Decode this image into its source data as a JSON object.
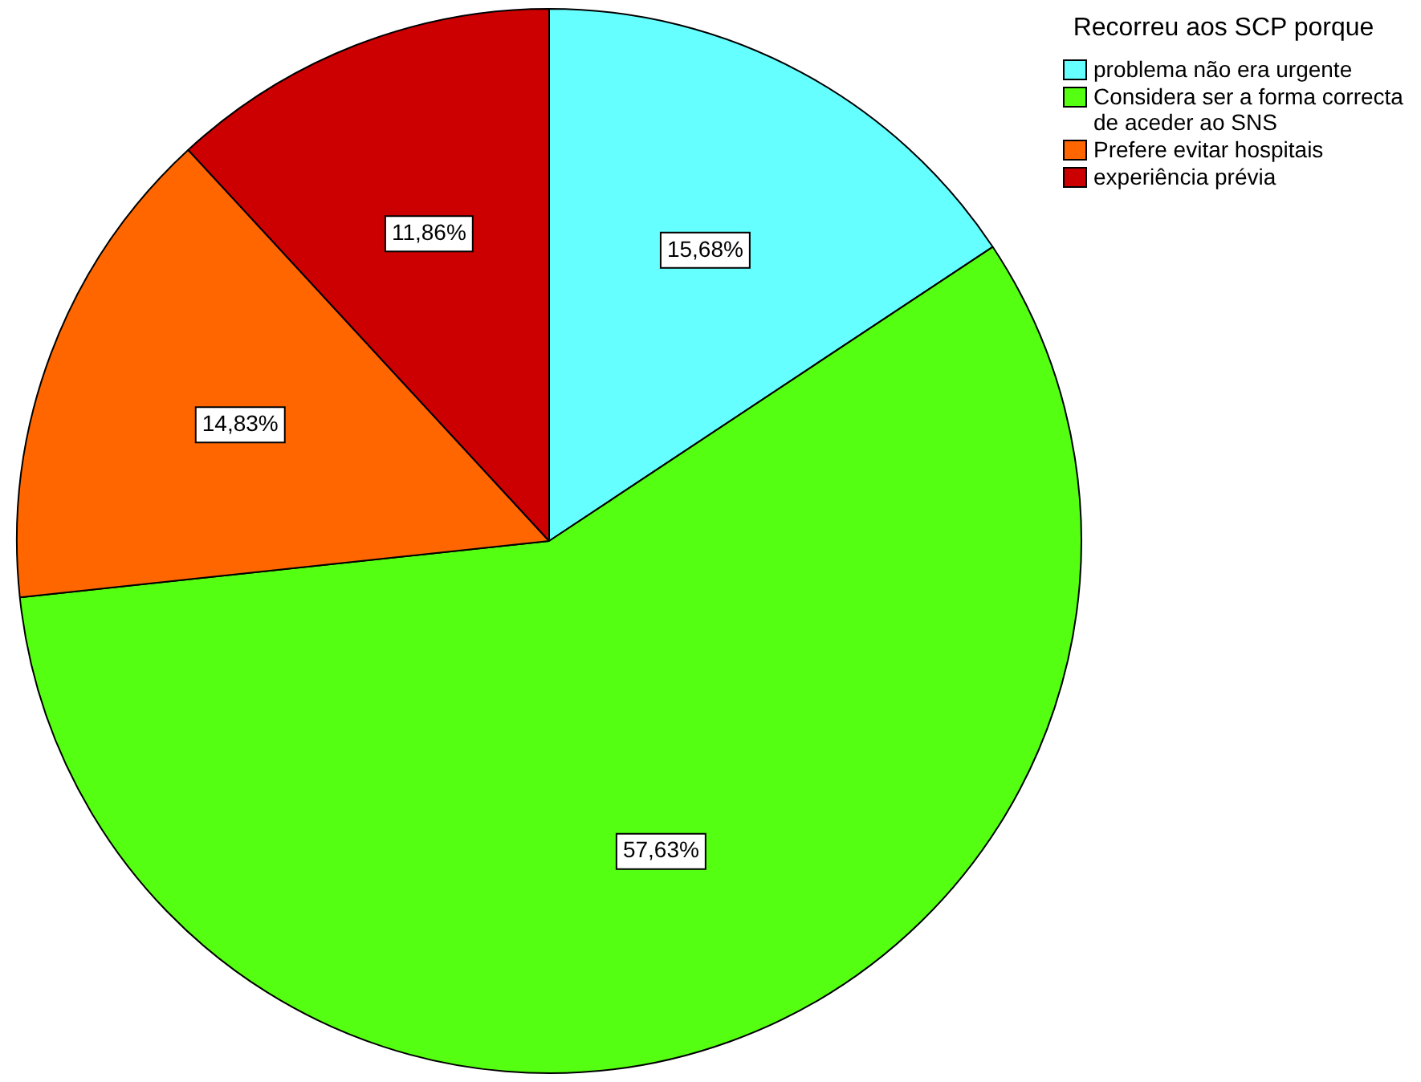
{
  "chart_data": {
    "type": "pie",
    "legend_title": "Recorreu aos SCP porque",
    "categories": [
      "problema não era urgente",
      "Considera ser a forma correcta de aceder ao SNS",
      "Prefere evitar hospitais",
      "experiência prévia"
    ],
    "values": [
      15.68,
      57.63,
      14.83,
      11.86
    ],
    "colors": [
      "#66ffff",
      "#55ff11",
      "#ff6600",
      "#cc0000"
    ],
    "value_labels": [
      "15,68%",
      "57,63%",
      "14,83%",
      "11,86%"
    ],
    "legend": "top right"
  }
}
